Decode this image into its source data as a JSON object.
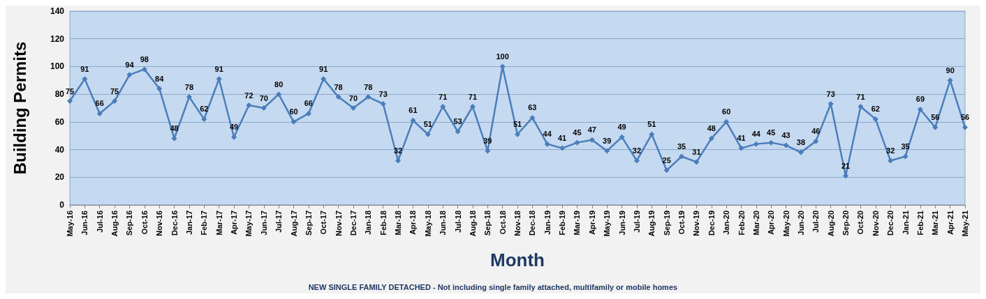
{
  "chart_data": {
    "type": "line",
    "xlabel": "Month",
    "ylabel": "Building Permits",
    "annotations": [
      "NEW SINGLE FAMILY DETACHED - Not including single family attached, multifamily or mobile homes"
    ],
    "categories": [
      "May-16",
      "Jun-16",
      "Jul-16",
      "Aug-16",
      "Sep-16",
      "Oct-16",
      "Nov-16",
      "Dec-16",
      "Jan-17",
      "Feb-17",
      "Mar-17",
      "Apr-17",
      "May-17",
      "Jun-17",
      "Jul-17",
      "Aug-17",
      "Sep-17",
      "Oct-17",
      "Nov-17",
      "Dec-17",
      "Jan-18",
      "Feb-18",
      "Mar-18",
      "Apr-18",
      "May-18",
      "Jun-18",
      "Jul-18",
      "Aug-18",
      "Sep-18",
      "Oct-18",
      "Nov-18",
      "Dec-18",
      "Jan-19",
      "Feb-19",
      "Mar-19",
      "Apr-19",
      "May-19",
      "Jun-19",
      "Jul-19",
      "Aug-19",
      "Sep-19",
      "Oct-19",
      "Nov-19",
      "Dec-19",
      "Jan-20",
      "Feb-20",
      "Mar-20",
      "Apr-20",
      "May-20",
      "Jun-20",
      "Jul-20",
      "Aug-20",
      "Sep-20",
      "Oct-20",
      "Nov-20",
      "Dec-20",
      "Jan-21",
      "Feb-21",
      "Mar-21",
      "Apr-21",
      "May-21"
    ],
    "series": [
      {
        "color": "#4a7ebb",
        "values": [
          75,
          91,
          66,
          75,
          94,
          98,
          84,
          48,
          78,
          62,
          91,
          49,
          72,
          70,
          80,
          60,
          66,
          91,
          78,
          70,
          78,
          73,
          32,
          61,
          51,
          71,
          53,
          71,
          39,
          100,
          51,
          63,
          44,
          41,
          45,
          47,
          39,
          49,
          32,
          51,
          25,
          35,
          31,
          48,
          60,
          41,
          44,
          45,
          43,
          38,
          46,
          73,
          21,
          71,
          62,
          32,
          35,
          69,
          56,
          90,
          56
        ]
      }
    ],
    "ylim": [
      0,
      140
    ],
    "yticks": [
      0,
      20,
      40,
      60,
      80,
      100,
      120,
      140
    ],
    "grid": "y",
    "marker": "diamond",
    "line_style": "solid",
    "data_labels": true
  }
}
